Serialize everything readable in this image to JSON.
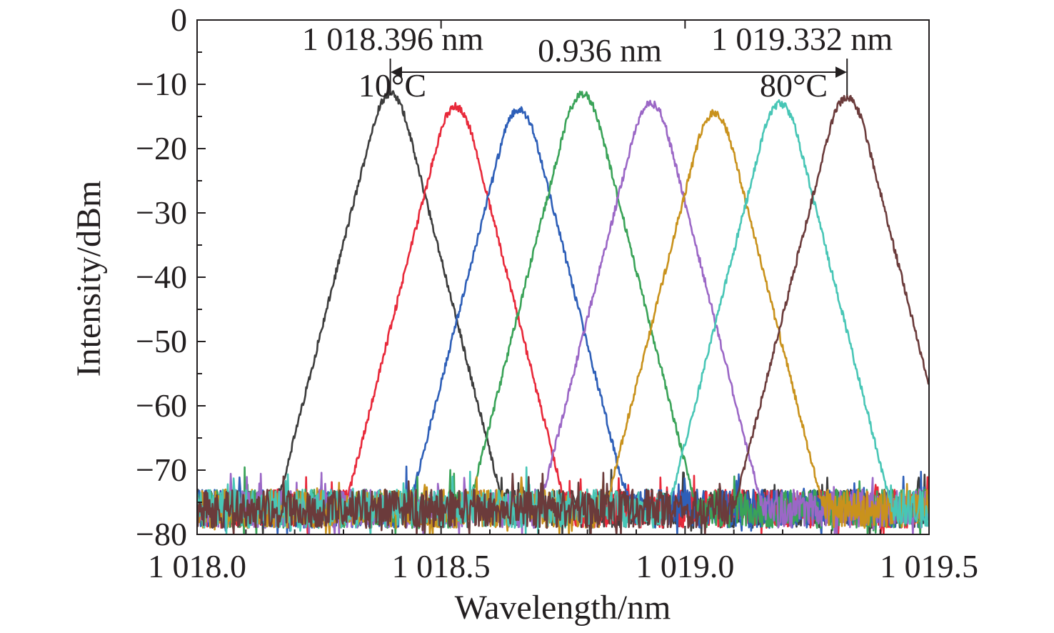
{
  "chart_data": {
    "type": "line",
    "xlabel": "Wavelength/nm",
    "ylabel": "Intensity/dBm",
    "xlim": [
      1018.0,
      1019.5
    ],
    "ylim": [
      -80,
      0
    ],
    "x_ticks": [
      1018.0,
      1018.5,
      1019.0,
      1019.5
    ],
    "x_tick_labels": [
      "1 018.0",
      "1 018.5",
      "1 019.0",
      "1 019.5"
    ],
    "y_ticks": [
      0,
      -10,
      -20,
      -30,
      -40,
      -50,
      -60,
      -70,
      -80
    ],
    "y_tick_labels": [
      "0",
      "−10",
      "−20",
      "−30",
      "−40",
      "−50",
      "−60",
      "−70",
      "−80"
    ],
    "grid": false,
    "legend": "none",
    "noise_floor_dbm": -76,
    "series": [
      {
        "color": "#3d3d3d",
        "peak_wavelength": 1018.396,
        "peak_dbm": -11.5
      },
      {
        "color": "#e8293a",
        "peak_wavelength": 1018.53,
        "peak_dbm": -13.5
      },
      {
        "color": "#2e5fb8",
        "peak_wavelength": 1018.66,
        "peak_dbm": -14.0
      },
      {
        "color": "#3aa358",
        "peak_wavelength": 1018.79,
        "peak_dbm": -11.5
      },
      {
        "color": "#9b67c6",
        "peak_wavelength": 1018.93,
        "peak_dbm": -13.0
      },
      {
        "color": "#c9921c",
        "peak_wavelength": 1019.06,
        "peak_dbm": -14.5
      },
      {
        "color": "#48c6b6",
        "peak_wavelength": 1019.195,
        "peak_dbm": -13.0
      },
      {
        "color": "#6b3b3b",
        "peak_wavelength": 1019.332,
        "peak_dbm": -12.0
      }
    ],
    "annotations": {
      "left_wavelength": "1 018.396 nm",
      "left_temp": "10°C",
      "right_wavelength": "1 019.332 nm",
      "right_temp": "80°C",
      "span": "0.936 nm",
      "left_x": 1018.396,
      "right_x": 1019.332
    }
  }
}
